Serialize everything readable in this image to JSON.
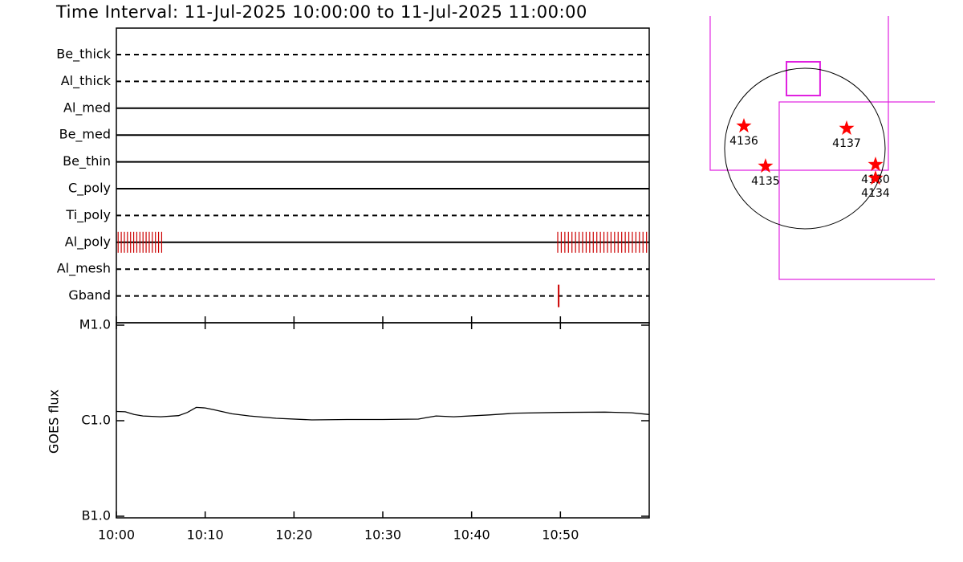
{
  "chart_data": [
    {
      "type": "timeline",
      "title": "Time Interval: 11-Jul-2025 10:00:00 to 11-Jul-2025 11:00:00",
      "xlim": [
        0,
        60
      ],
      "event_color": "#cc0000",
      "rows": [
        {
          "name": "Be_thick",
          "style": "dashed",
          "events": []
        },
        {
          "name": "Al_thick",
          "style": "dashed",
          "events": []
        },
        {
          "name": "Al_med",
          "style": "solid",
          "events": []
        },
        {
          "name": "Be_med",
          "style": "solid",
          "events": []
        },
        {
          "name": "Be_thin",
          "style": "solid",
          "events": []
        },
        {
          "name": "C_poly",
          "style": "solid",
          "events": []
        },
        {
          "name": "Ti_poly",
          "style": "dashed",
          "events": []
        },
        {
          "name": "Al_poly",
          "style": "solid",
          "events": [
            0.2,
            0.55,
            0.9,
            1.25,
            1.6,
            1.95,
            2.3,
            2.65,
            3.0,
            3.35,
            3.7,
            4.05,
            4.4,
            4.75,
            5.1,
            49.7,
            50.1,
            50.5,
            50.9,
            51.3,
            51.7,
            52.1,
            52.5,
            52.9,
            53.3,
            53.7,
            54.1,
            54.5,
            54.9,
            55.3,
            55.7,
            56.1,
            56.5,
            56.9,
            57.3,
            57.7,
            58.1,
            58.5,
            58.9,
            59.3,
            59.7
          ]
        },
        {
          "name": "Al_mesh",
          "style": "dashed",
          "events": []
        },
        {
          "name": "Gband",
          "style": "dashed",
          "events": [
            49.8
          ]
        }
      ]
    },
    {
      "type": "line",
      "y_label": "GOES flux",
      "log_scale": true,
      "color": "#000000",
      "xlim": [
        0,
        60
      ],
      "xticks": [
        {
          "value": 0,
          "label": "10:00"
        },
        {
          "value": 10,
          "label": "10:10"
        },
        {
          "value": 20,
          "label": "10:20"
        },
        {
          "value": 30,
          "label": "10:30"
        },
        {
          "value": 40,
          "label": "10:40"
        },
        {
          "value": 50,
          "label": "10:50"
        }
      ],
      "ylim": [
        1e-07,
        1e-05
      ],
      "yticks": [
        {
          "value": 1e-05,
          "label": "M1.0"
        },
        {
          "value": 1e-06,
          "label": "C1.0"
        },
        {
          "value": 1e-07,
          "label": "B1.0"
        }
      ],
      "x": [
        0,
        1,
        2,
        3,
        5,
        7,
        8,
        9,
        10,
        11,
        13,
        15,
        18,
        22,
        26,
        30,
        34,
        35,
        36,
        38,
        42,
        45,
        50,
        55,
        58,
        60
      ],
      "values": [
        1.25e-06,
        1.24e-06,
        1.16e-06,
        1.12e-06,
        1.1e-06,
        1.13e-06,
        1.22e-06,
        1.38e-06,
        1.36e-06,
        1.3e-06,
        1.18e-06,
        1.12e-06,
        1.06e-06,
        1.02e-06,
        1.03e-06,
        1.03e-06,
        1.04e-06,
        1.08e-06,
        1.12e-06,
        1.1e-06,
        1.15e-06,
        1.2e-06,
        1.22e-06,
        1.23e-06,
        1.21e-06,
        1.16e-06
      ]
    },
    {
      "type": "map",
      "disk_radius": 950,
      "xlim": [
        -1358,
        1539
      ],
      "ylim": [
        -1568,
        1520
      ],
      "color": "#ff0000",
      "fov_color": "#e020e0",
      "fov": [
        {
          "x": [
            -1121,
            988
          ],
          "y": [
            -257,
            1710
          ]
        },
        {
          "x": [
            -304,
            1700
          ],
          "y": [
            -1549,
            551
          ]
        },
        {
          "x": [
            -218,
            180
          ],
          "y": [
            627,
            1026
          ]
        }
      ],
      "regions": [
        {
          "name": "4136",
          "x": -722,
          "y": 266
        },
        {
          "name": "4137",
          "x": 494,
          "y": 238
        },
        {
          "name": "4135",
          "x": -466,
          "y": -209
        },
        {
          "name": "4130",
          "x": 836,
          "y": -190
        },
        {
          "name": "4134",
          "x": 836,
          "y": -352
        }
      ]
    }
  ]
}
